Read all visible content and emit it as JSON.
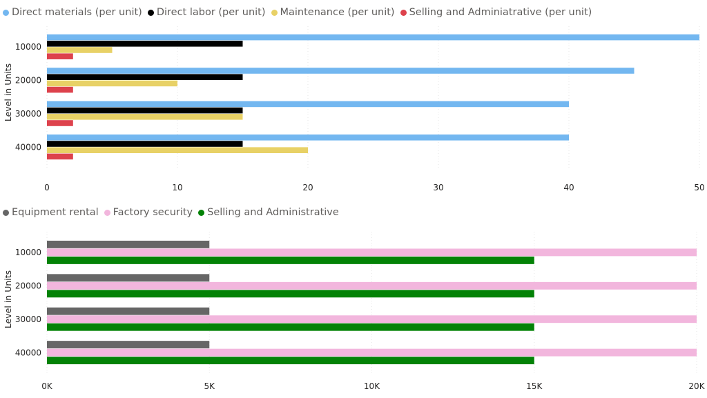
{
  "chart_data": [
    {
      "type": "bar",
      "orientation": "horizontal",
      "categories": [
        "10000",
        "20000",
        "30000",
        "40000"
      ],
      "series": [
        {
          "name": "Direct materials (per unit)",
          "color": "#73b7f0",
          "values": [
            50,
            45,
            40,
            40
          ]
        },
        {
          "name": "Direct labor (per unit)",
          "color": "#000000",
          "values": [
            15,
            15,
            15,
            15
          ]
        },
        {
          "name": "Maintenance (per unit)",
          "color": "#e8d166",
          "values": [
            5,
            10,
            15,
            20
          ]
        },
        {
          "name": "Selling and Adminiatrative (per unit)",
          "color": "#dd424c",
          "values": [
            2,
            2,
            2,
            2
          ]
        }
      ],
      "ylabel": "Level in Units",
      "xlabel": "",
      "xlim": [
        0,
        50
      ],
      "xticks": [
        0,
        10,
        20,
        30,
        40,
        50
      ],
      "xtick_labels": [
        "0",
        "10",
        "20",
        "30",
        "40",
        "50"
      ],
      "grid": true,
      "legend": "top-left"
    },
    {
      "type": "bar",
      "orientation": "horizontal",
      "categories": [
        "10000",
        "20000",
        "30000",
        "40000"
      ],
      "series": [
        {
          "name": "Equipment rental",
          "color": "#666666",
          "values": [
            5000,
            5000,
            5000,
            5000
          ]
        },
        {
          "name": "Factory security",
          "color": "#f2b6dd",
          "values": [
            20000,
            20000,
            20000,
            20000
          ]
        },
        {
          "name": "Selling and Administrative",
          "color": "#038206",
          "values": [
            15000,
            15000,
            15000,
            15000
          ]
        }
      ],
      "ylabel": "Level in Units",
      "xlabel": "",
      "xlim": [
        0,
        20000
      ],
      "xticks": [
        0,
        5000,
        10000,
        15000,
        20000
      ],
      "xtick_labels": [
        "0K",
        "5K",
        "10K",
        "15K",
        "20K"
      ],
      "grid": true,
      "legend": "top-left"
    }
  ]
}
